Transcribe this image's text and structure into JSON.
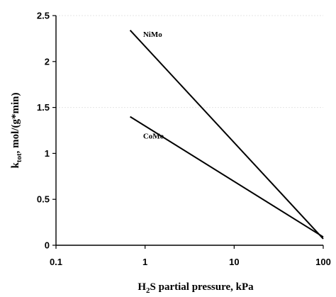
{
  "chart_data": {
    "type": "line",
    "title": "",
    "xlabel": {
      "prefix": "H",
      "sub": "2",
      "suffix": "S partial pressure, kPa"
    },
    "ylabel": {
      "prefix": "k",
      "sub": "tot",
      "suffix": ", mol/(g*min)"
    },
    "xscale": "log",
    "xlim": [
      0.1,
      100
    ],
    "ylim": [
      0,
      2.5
    ],
    "xticks": [
      {
        "value": 0.1,
        "label": "0.1"
      },
      {
        "value": 1,
        "label": "1"
      },
      {
        "value": 10,
        "label": "10"
      },
      {
        "value": 100,
        "label": "100"
      }
    ],
    "yticks": [
      {
        "value": 0,
        "label": "0"
      },
      {
        "value": 0.5,
        "label": "0.5"
      },
      {
        "value": 1,
        "label": "1"
      },
      {
        "value": 1.5,
        "label": "1.5"
      },
      {
        "value": 2,
        "label": "2"
      },
      {
        "value": 2.5,
        "label": "2.5"
      }
    ],
    "gridlines_y": [
      1.5,
      2.5
    ],
    "series": [
      {
        "name": "NiMo",
        "points": [
          [
            0.68,
            2.34
          ],
          [
            100,
            0.07
          ]
        ],
        "color": "#000000"
      },
      {
        "name": "CoMo",
        "points": [
          [
            0.68,
            1.4
          ],
          [
            100,
            0.09
          ]
        ],
        "color": "#000000"
      }
    ]
  }
}
